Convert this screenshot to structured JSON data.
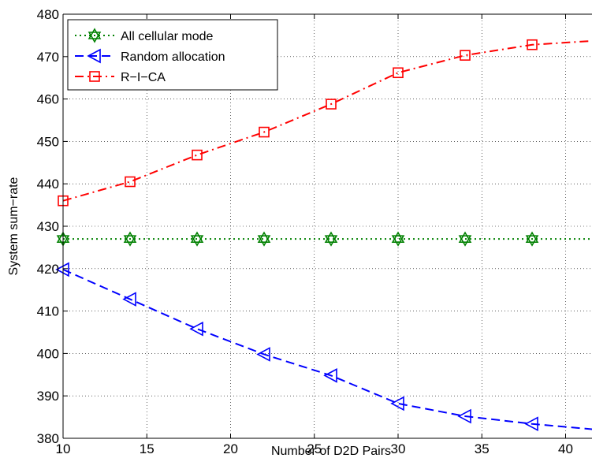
{
  "chart_data": {
    "type": "line",
    "xlabel": "Number of D2D Pairs",
    "ylabel": "System sum−rate",
    "xlim": [
      10,
      42
    ],
    "ylim": [
      380,
      480
    ],
    "xticks": [
      10,
      15,
      20,
      25,
      30,
      35,
      40
    ],
    "yticks": [
      380,
      390,
      400,
      410,
      420,
      430,
      440,
      450,
      460,
      470,
      480
    ],
    "grid": true,
    "legend_position": "top-left",
    "x": [
      10,
      14,
      18,
      22,
      26,
      30,
      34,
      38,
      42
    ],
    "series": [
      {
        "name": "All cellular mode",
        "values": [
          427,
          427,
          427,
          427,
          427,
          427,
          427,
          427,
          427
        ],
        "color": "#008000",
        "line_style": "dotted",
        "marker": "hexagram"
      },
      {
        "name": "Random allocation",
        "values": [
          419.8,
          412.8,
          405.8,
          399.8,
          394.8,
          388.2,
          385.2,
          383.4,
          382.0
        ],
        "color": "#0000ff",
        "line_style": "dashed",
        "marker": "triangle-left"
      },
      {
        "name": "R−I−CA",
        "values": [
          436.0,
          440.5,
          446.8,
          452.2,
          458.8,
          466.2,
          470.3,
          472.8,
          473.8
        ],
        "color": "#ff0000",
        "line_style": "dash-dot",
        "marker": "square"
      }
    ]
  }
}
